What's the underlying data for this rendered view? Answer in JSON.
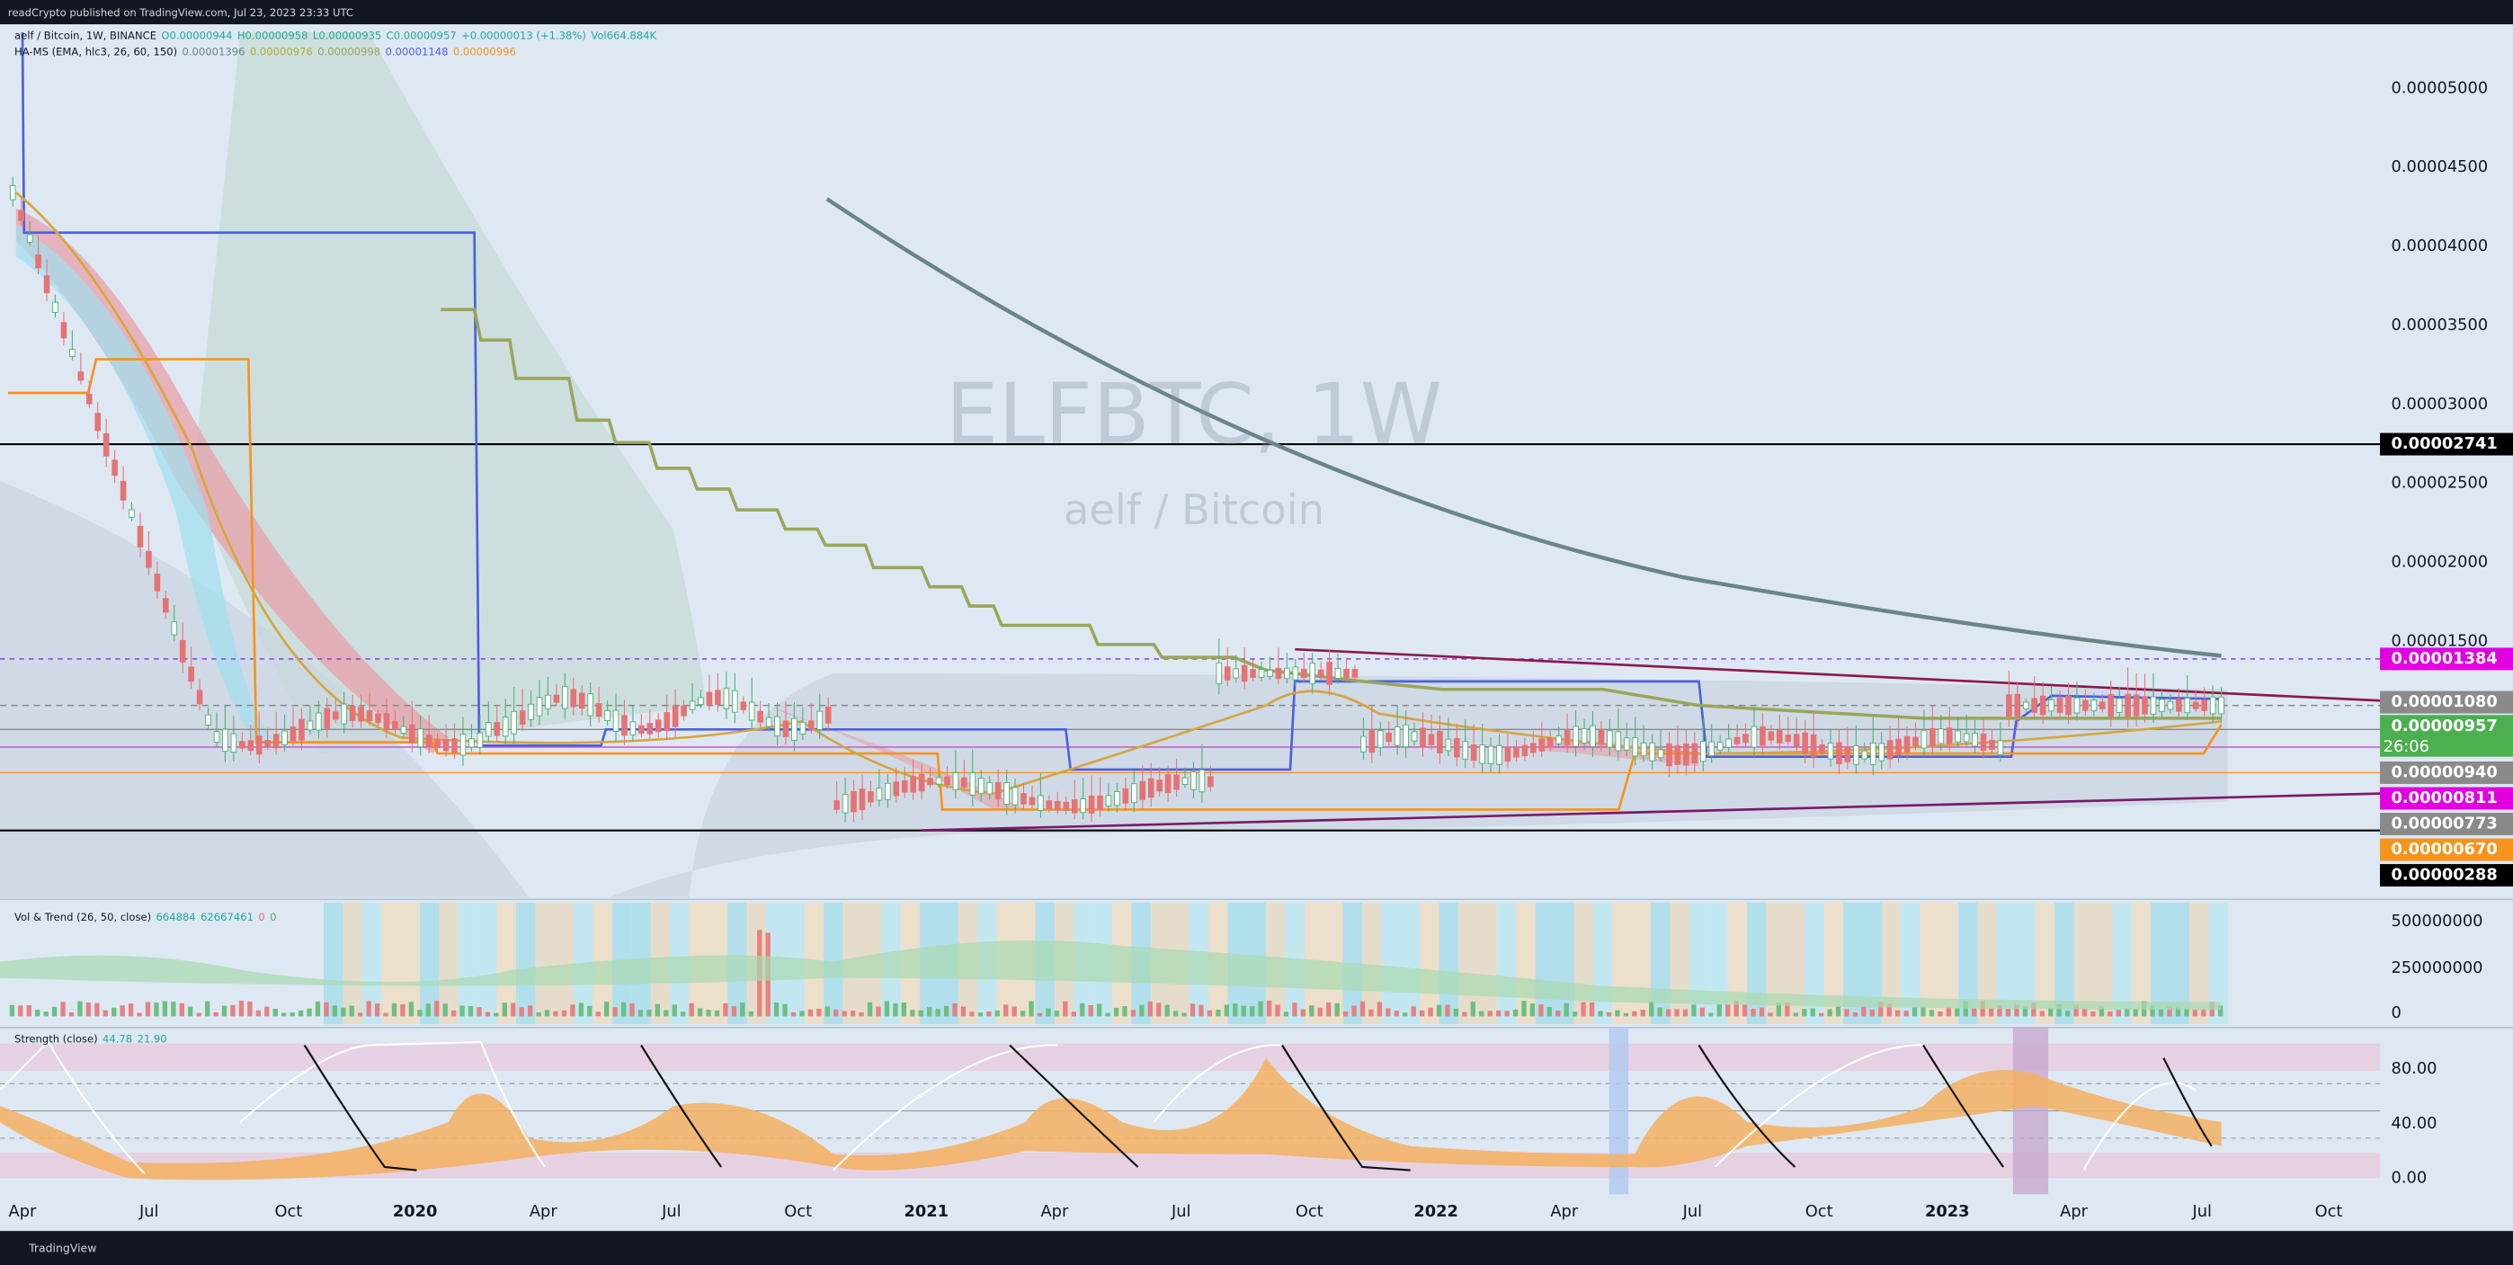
{
  "header": {
    "published": "readCrypto published on TradingView.com, Jul 23, 2023 23:33 UTC"
  },
  "legend": {
    "main": [
      "aelf / Bitcoin, 1W, BINANCE",
      "O0.00000944",
      "H0.00000958",
      "L0.00000935",
      "C0.00000957",
      "+0.00000013 (+1.38%)",
      "Vol664.884K"
    ],
    "indicator": [
      "HA-MS (EMA, hlc3, 26, 60, 150)",
      "0.00001396",
      "0.00000976",
      "0.00000998",
      "0.00001148",
      "0.00000996"
    ]
  },
  "watermark": {
    "symbol": "ELFBTC, 1W",
    "name": "aelf / Bitcoin"
  },
  "price_axis": [
    "0.00005000",
    "0.00004500",
    "0.00004000",
    "0.00003500",
    "0.00003000",
    "0.00002500",
    "0.00002000",
    "0.00001500"
  ],
  "price_tags": [
    {
      "text": "0.00002741",
      "color": "#000000"
    },
    {
      "text": "0.00001384",
      "color": "#e000e0"
    },
    {
      "text": "0.00001080",
      "color": "#8a8a8a"
    },
    {
      "text": "0.00000957",
      "color": "#4caf50"
    },
    {
      "text": "0.00000940",
      "color": "#8a8a8a"
    },
    {
      "text": "0.00000811",
      "color": "#e000e0"
    },
    {
      "text": "0.00000773",
      "color": "#8a8a8a"
    },
    {
      "text": "0.00000670",
      "color": "#f7931a"
    },
    {
      "text": "0.00000288",
      "color": "#000000"
    }
  ],
  "countdown": "26:06",
  "volume_panel": {
    "label": [
      "Vol & Trend (26, 50, close)",
      "664884",
      "62667461",
      "0",
      "0"
    ],
    "axis": [
      "500000000",
      "250000000",
      "0"
    ]
  },
  "strength_panel": {
    "label": [
      "Strength (close)",
      "44.78",
      "21.90"
    ],
    "axis": [
      "80.00",
      "40.00",
      "0.00"
    ]
  },
  "time_axis": [
    "Apr",
    "Jul",
    "Oct",
    "2020",
    "Apr",
    "Jul",
    "Oct",
    "2021",
    "Apr",
    "Jul",
    "Oct",
    "2022",
    "Apr",
    "Jul",
    "Oct",
    "2023",
    "Apr",
    "Jul",
    "Oct"
  ],
  "footer": {
    "brand": "TradingView"
  }
}
